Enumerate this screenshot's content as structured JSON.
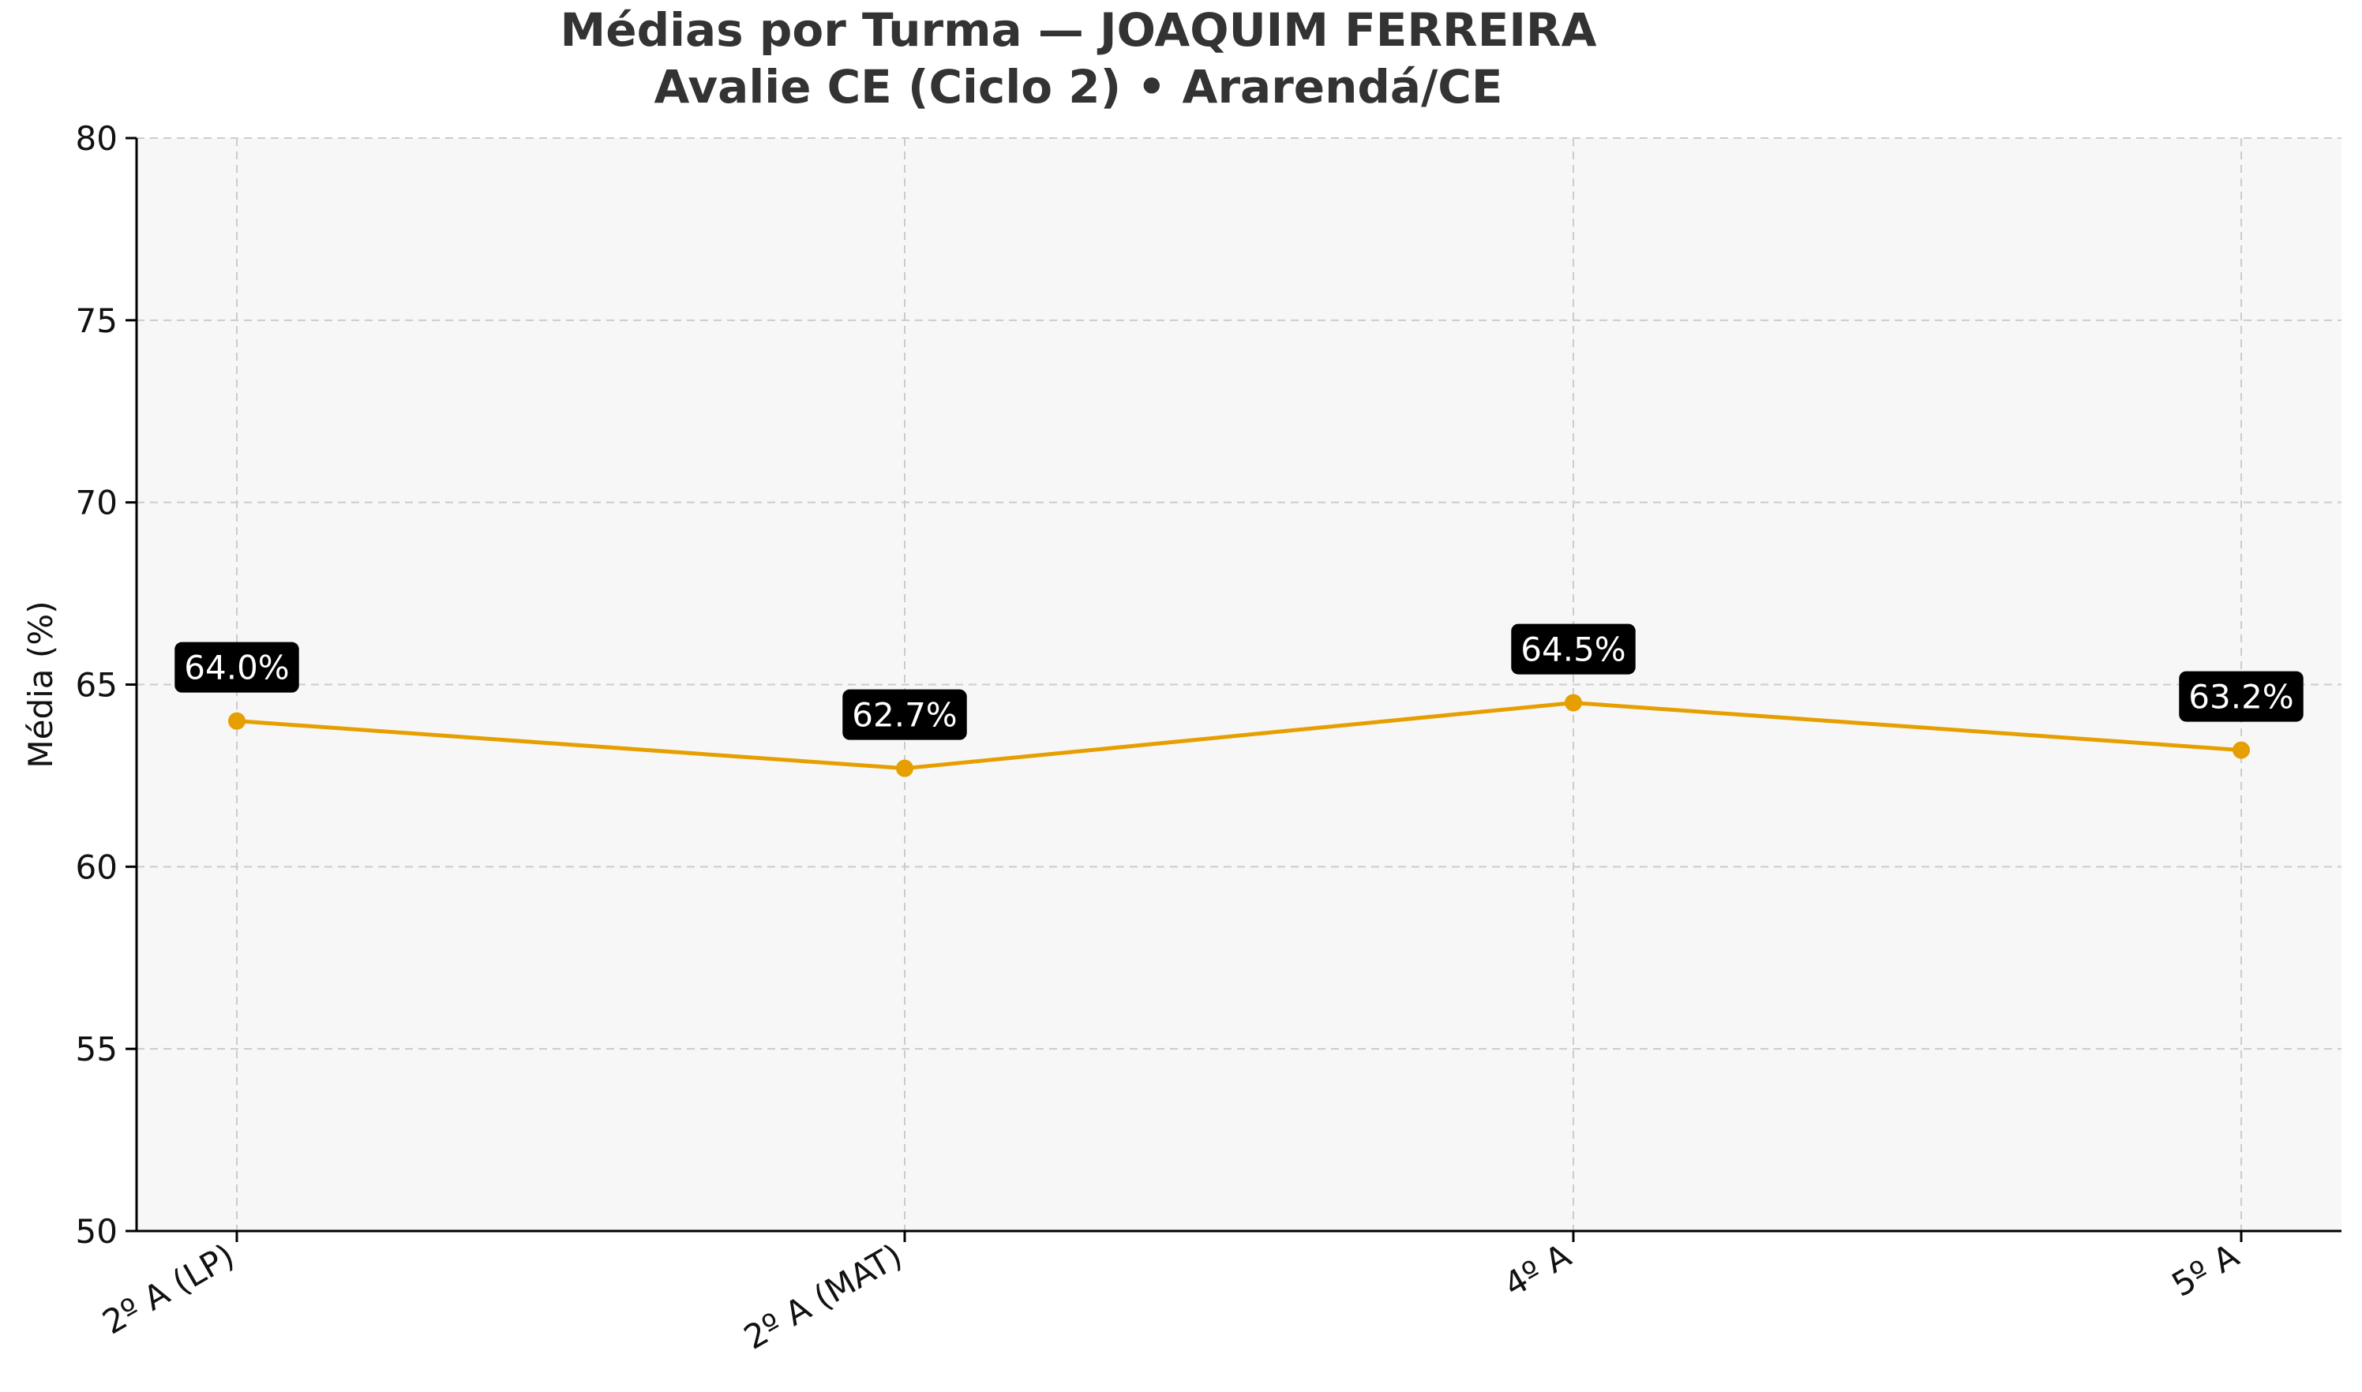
{
  "chart_data": {
    "type": "line",
    "title": "Médias por Turma — JOAQUIM FERREIRA",
    "subtitle": "Avalie CE (Ciclo 2) • Ararendá/CE",
    "xlabel": "",
    "ylabel": "Média (%)",
    "categories": [
      "2º A (LP)",
      "2º A (MAT)",
      "4º A",
      "5º A"
    ],
    "series": [
      {
        "values": [
          64.0,
          62.7,
          64.5,
          63.2
        ],
        "data_labels": [
          "64.0%",
          "62.7%",
          "64.5%",
          "63.2%"
        ],
        "color": "#e69f00"
      }
    ],
    "ylim": [
      50,
      80
    ],
    "yticks": [
      50,
      55,
      60,
      65,
      70,
      75,
      80
    ],
    "grid": true,
    "legend": "none"
  },
  "colors": {
    "plot_background": "#f7f7f7",
    "grid": "#cccccc",
    "axis": "#000000",
    "title_text": "#333333",
    "label_box": "#000000",
    "label_text": "#ffffff",
    "line": "#e69f00"
  }
}
